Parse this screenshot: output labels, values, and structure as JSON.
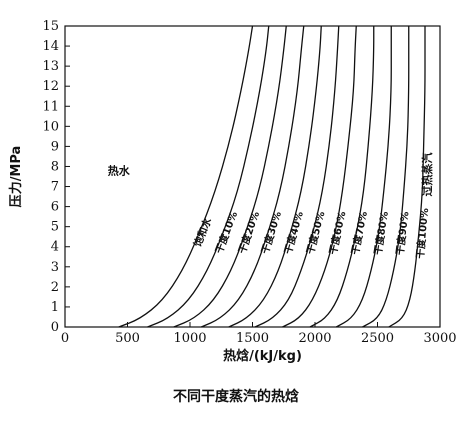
{
  "caption": "不同干度蒸汽的热焓",
  "chart_data": {
    "type": "line",
    "xlabel": "热焓/(kJ/kg)",
    "ylabel": "压力/MPa",
    "xlim": [
      0,
      3000
    ],
    "ylim": [
      0,
      15
    ],
    "x_ticks": [
      0,
      500,
      1000,
      1500,
      2000,
      2500,
      3000
    ],
    "y_ticks": [
      0,
      1,
      2,
      3,
      4,
      5,
      6,
      7,
      8,
      9,
      10,
      11,
      12,
      13,
      14,
      15
    ],
    "grid": false,
    "legend": "none",
    "region_labels": [
      {
        "text": "热水",
        "x": 430,
        "y": 7.6
      },
      {
        "text": "过热蒸汽",
        "x": 2930,
        "y": 7.6
      }
    ],
    "series": [
      {
        "name": "饱和水",
        "points": [
          [
            430,
            0
          ],
          [
            600,
            0.4
          ],
          [
            780,
            1.3
          ],
          [
            940,
            2.8
          ],
          [
            1070,
            4.6
          ],
          [
            1200,
            6.7
          ],
          [
            1320,
            9.3
          ],
          [
            1410,
            11.8
          ],
          [
            1470,
            13.8
          ],
          [
            1500,
            15
          ]
        ]
      },
      {
        "name": "干度10%",
        "points": [
          [
            660,
            0
          ],
          [
            820,
            0.4
          ],
          [
            990,
            1.3
          ],
          [
            1140,
            2.8
          ],
          [
            1260,
            4.6
          ],
          [
            1380,
            6.7
          ],
          [
            1480,
            9.3
          ],
          [
            1560,
            11.8
          ],
          [
            1610,
            13.8
          ],
          [
            1630,
            15
          ]
        ]
      },
      {
        "name": "干度20%",
        "points": [
          [
            870,
            0
          ],
          [
            1030,
            0.4
          ],
          [
            1190,
            1.3
          ],
          [
            1330,
            2.8
          ],
          [
            1440,
            4.6
          ],
          [
            1550,
            6.7
          ],
          [
            1640,
            9.3
          ],
          [
            1710,
            11.8
          ],
          [
            1750,
            13.8
          ],
          [
            1770,
            15
          ]
        ]
      },
      {
        "name": "干度30%",
        "points": [
          [
            1090,
            0
          ],
          [
            1240,
            0.4
          ],
          [
            1390,
            1.3
          ],
          [
            1520,
            2.8
          ],
          [
            1620,
            4.6
          ],
          [
            1720,
            6.7
          ],
          [
            1800,
            9.3
          ],
          [
            1860,
            11.8
          ],
          [
            1890,
            13.8
          ],
          [
            1910,
            15
          ]
        ]
      },
      {
        "name": "干度40%",
        "points": [
          [
            1310,
            0
          ],
          [
            1450,
            0.4
          ],
          [
            1590,
            1.3
          ],
          [
            1710,
            2.8
          ],
          [
            1800,
            4.6
          ],
          [
            1890,
            6.7
          ],
          [
            1960,
            9.3
          ],
          [
            2010,
            11.8
          ],
          [
            2040,
            13.8
          ],
          [
            2050,
            15
          ]
        ]
      },
      {
        "name": "干度50%",
        "points": [
          [
            1520,
            0
          ],
          [
            1660,
            0.4
          ],
          [
            1790,
            1.3
          ],
          [
            1890,
            2.8
          ],
          [
            1980,
            4.6
          ],
          [
            2060,
            6.7
          ],
          [
            2120,
            9.3
          ],
          [
            2160,
            11.8
          ],
          [
            2180,
            13.8
          ],
          [
            2190,
            15
          ]
        ]
      },
      {
        "name": "干度60%",
        "points": [
          [
            1740,
            0
          ],
          [
            1870,
            0.4
          ],
          [
            1980,
            1.3
          ],
          [
            2080,
            2.8
          ],
          [
            2160,
            4.6
          ],
          [
            2220,
            6.7
          ],
          [
            2270,
            9.3
          ],
          [
            2310,
            11.8
          ],
          [
            2320,
            13.8
          ],
          [
            2330,
            15
          ]
        ]
      },
      {
        "name": "干度70%",
        "points": [
          [
            1960,
            0
          ],
          [
            2080,
            0.4
          ],
          [
            2180,
            1.3
          ],
          [
            2260,
            2.8
          ],
          [
            2330,
            4.6
          ],
          [
            2390,
            6.7
          ],
          [
            2430,
            9.3
          ],
          [
            2460,
            11.8
          ],
          [
            2470,
            13.8
          ],
          [
            2470,
            15
          ]
        ]
      },
      {
        "name": "干度80%",
        "points": [
          [
            2170,
            0
          ],
          [
            2290,
            0.4
          ],
          [
            2380,
            1.3
          ],
          [
            2450,
            2.8
          ],
          [
            2510,
            4.6
          ],
          [
            2550,
            6.7
          ],
          [
            2590,
            9.3
          ],
          [
            2610,
            11.8
          ],
          [
            2610,
            13.8
          ],
          [
            2610,
            15
          ]
        ]
      },
      {
        "name": "干度90%",
        "points": [
          [
            2380,
            0
          ],
          [
            2500,
            0.4
          ],
          [
            2570,
            1.3
          ],
          [
            2630,
            2.8
          ],
          [
            2680,
            4.6
          ],
          [
            2710,
            6.7
          ],
          [
            2740,
            9.3
          ],
          [
            2750,
            11.8
          ],
          [
            2750,
            13.8
          ],
          [
            2750,
            15
          ]
        ]
      },
      {
        "name": "干度100%",
        "points": [
          [
            2590,
            0
          ],
          [
            2700,
            0.4
          ],
          [
            2760,
            1.3
          ],
          [
            2800,
            2.8
          ],
          [
            2830,
            4.6
          ],
          [
            2860,
            6.7
          ],
          [
            2870,
            9.3
          ],
          [
            2880,
            11.8
          ],
          [
            2880,
            13.8
          ],
          [
            2880,
            15
          ]
        ]
      }
    ]
  }
}
